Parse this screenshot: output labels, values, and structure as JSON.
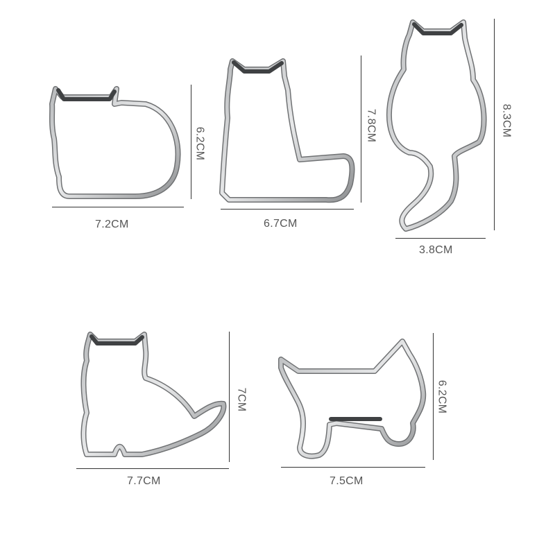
{
  "colors": {
    "metal_outer": "#8a8c8e",
    "metal_inner": "#d9dadb",
    "metal_shadow": "#4a4c4e",
    "line": "#333333",
    "text": "#555555"
  },
  "cutters": [
    {
      "name": "cat-lying",
      "width_label": "7.2CM",
      "height_label": "6.2CM"
    },
    {
      "name": "cat-sitting-long-tail",
      "width_label": "6.7CM",
      "height_label": "7.8CM"
    },
    {
      "name": "cat-back-view",
      "width_label": "3.8CM",
      "height_label": "8.3CM"
    },
    {
      "name": "cat-sitting-side",
      "width_label": "7.7CM",
      "height_label": "7CM"
    },
    {
      "name": "cat-standing",
      "width_label": "7.5CM",
      "height_label": "6.2CM"
    }
  ]
}
